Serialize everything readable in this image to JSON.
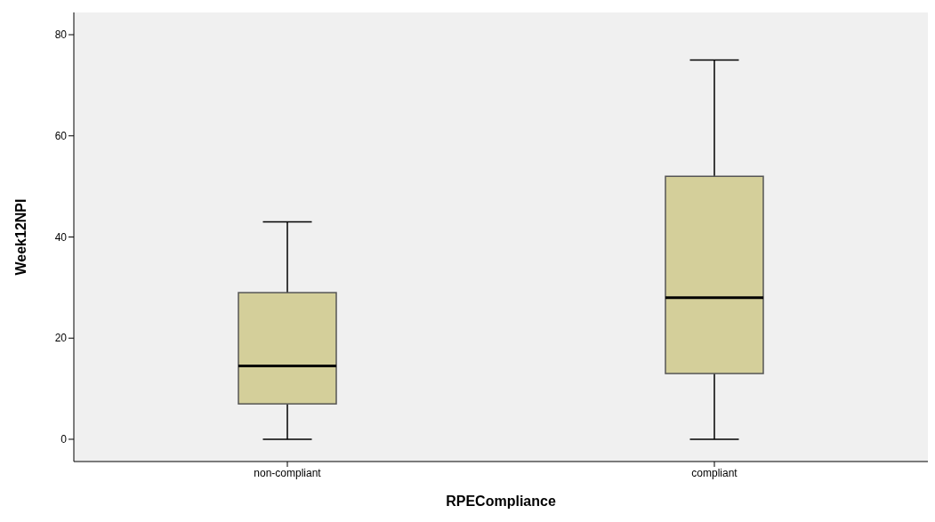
{
  "chart_data": {
    "type": "box",
    "xlabel": "RPECompliance",
    "ylabel": "Week12NPI",
    "categories": [
      "non-compliant",
      "compliant"
    ],
    "boxes": [
      {
        "low": 0,
        "q1": 7,
        "median": 14.5,
        "q3": 29,
        "high": 43
      },
      {
        "low": 0,
        "q1": 13,
        "median": 28,
        "q3": 52,
        "high": 75
      }
    ],
    "color": "#d4cf9a",
    "ylim": [
      -4.4,
      84.4
    ],
    "yticks": [
      0,
      20,
      40,
      60,
      80
    ],
    "grid": false
  }
}
